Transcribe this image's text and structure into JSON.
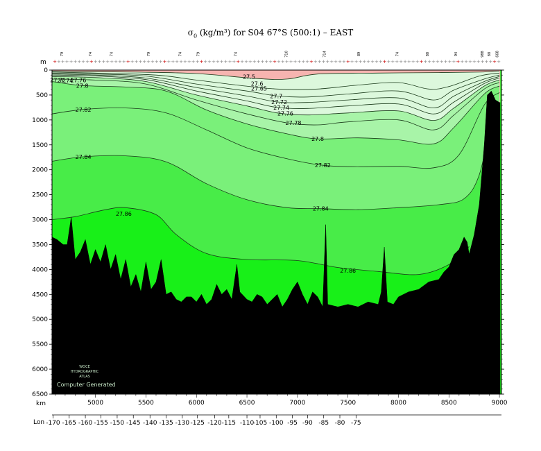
{
  "chart_data": {
    "type": "contour",
    "title_prefix": "σ",
    "title_sub": "0",
    "title_rest": " (kg/m³) for S04 67°S (500:1) – EAST",
    "ylabel": "m",
    "xlabel": "km",
    "lon_label": "Lon",
    "depth_ticks": [
      0,
      500,
      1000,
      1500,
      2000,
      2500,
      3000,
      3500,
      4000,
      4500,
      5000,
      5500,
      6000,
      6500
    ],
    "ylim": [
      6500,
      0
    ],
    "km_ticks": [
      5000,
      5500,
      6000,
      6500,
      7000,
      7500,
      8000,
      8500,
      9000
    ],
    "xlim": [
      4570,
      9020
    ],
    "lon_ticks": [
      {
        "km": 4580,
        "label": "-170"
      },
      {
        "km": 4740,
        "label": "-165"
      },
      {
        "km": 4900,
        "label": "-160"
      },
      {
        "km": 5055,
        "label": "-155"
      },
      {
        "km": 5215,
        "label": "-150"
      },
      {
        "km": 5375,
        "label": "-145"
      },
      {
        "km": 5540,
        "label": "-140"
      },
      {
        "km": 5700,
        "label": "-135"
      },
      {
        "km": 5860,
        "label": "-130"
      },
      {
        "km": 6010,
        "label": "-125"
      },
      {
        "km": 6180,
        "label": "-120"
      },
      {
        "km": 6320,
        "label": "-115"
      },
      {
        "km": 6500,
        "label": "-110"
      },
      {
        "km": 6630,
        "label": "-105"
      },
      {
        "km": 6790,
        "label": "-100"
      },
      {
        "km": 6950,
        "label": "-95"
      },
      {
        "km": 7100,
        "label": "-90"
      },
      {
        "km": 7260,
        "label": "-85"
      },
      {
        "km": 7420,
        "label": "-80"
      },
      {
        "km": 7580,
        "label": "-75"
      }
    ],
    "station_labels": [
      {
        "km": 4680,
        "label": "79"
      },
      {
        "km": 4960,
        "label": "74"
      },
      {
        "km": 5170,
        "label": "74"
      },
      {
        "km": 5540,
        "label": "79"
      },
      {
        "km": 5850,
        "label": "74"
      },
      {
        "km": 6030,
        "label": "79"
      },
      {
        "km": 6400,
        "label": "74"
      },
      {
        "km": 6900,
        "label": "710"
      },
      {
        "km": 7280,
        "label": "714"
      },
      {
        "km": 7620,
        "label": "89"
      },
      {
        "km": 8000,
        "label": "74"
      },
      {
        "km": 8300,
        "label": "88"
      },
      {
        "km": 8580,
        "label": "94"
      },
      {
        "km": 8840,
        "label": "988"
      },
      {
        "km": 8910,
        "label": "88"
      },
      {
        "km": 8990,
        "label": "668"
      }
    ],
    "contour_levels": [
      27.5,
      27.6,
      27.65,
      27.7,
      27.72,
      27.74,
      27.76,
      27.78,
      27.8,
      27.82,
      27.84,
      27.86
    ],
    "fill_colors": {
      "below_27_6": "#f6b4b0",
      "27_6_to_27_76": "#dcf8dc",
      "27_76_to_27_8": "#a8f4a8",
      "27_8_to_27_84": "#7af07a",
      "27_84_to_27_86": "#48ec48",
      "above_27_86": "#18f018",
      "bottom": "#000000"
    },
    "contour_labels": [
      {
        "text": "27.5",
        "km": 6520,
        "depth": 130
      },
      {
        "text": "27.6",
        "km": 6600,
        "depth": 270
      },
      {
        "text": "27.65",
        "km": 6620,
        "depth": 370
      },
      {
        "text": "27.7",
        "km": 6790,
        "depth": 520
      },
      {
        "text": "27.72",
        "km": 6820,
        "depth": 640
      },
      {
        "text": "27.74",
        "km": 6840,
        "depth": 750
      },
      {
        "text": "27.76",
        "km": 6880,
        "depth": 870
      },
      {
        "text": "27.78",
        "km": 6960,
        "depth": 1060
      },
      {
        "text": "27.8",
        "km": 7200,
        "depth": 1380
      },
      {
        "text": "27.82",
        "km": 7250,
        "depth": 1910
      },
      {
        "text": "27.84",
        "km": 7230,
        "depth": 2780
      },
      {
        "text": "27.86",
        "km": 7500,
        "depth": 4020
      },
      {
        "text": "27.8",
        "km": 4870,
        "depth": 310
      },
      {
        "text": "27.82",
        "km": 4880,
        "depth": 790
      },
      {
        "text": "27.84",
        "km": 4880,
        "depth": 1740
      },
      {
        "text": "27.86",
        "km": 5280,
        "depth": 2880
      },
      {
        "text": "27.76",
        "km": 4830,
        "depth": 200
      },
      {
        "text": "27.74",
        "km": 4700,
        "depth": 210
      },
      {
        "text": "27.72",
        "km": 4630,
        "depth": 200
      }
    ],
    "contours": [
      {
        "level": 27.6,
        "points": [
          [
            4570,
            20
          ],
          [
            4800,
            30
          ],
          [
            5400,
            40
          ],
          [
            6000,
            70
          ],
          [
            6600,
            170
          ],
          [
            6900,
            180
          ],
          [
            7200,
            80
          ],
          [
            7800,
            60
          ],
          [
            8400,
            50
          ],
          [
            8800,
            40
          ],
          [
            9000,
            20
          ]
        ]
      },
      {
        "level": 27.65,
        "points": [
          [
            4570,
            40
          ],
          [
            5000,
            60
          ],
          [
            5600,
            100
          ],
          [
            6000,
            200
          ],
          [
            6400,
            300
          ],
          [
            6800,
            380
          ],
          [
            7200,
            380
          ],
          [
            7600,
            300
          ],
          [
            8000,
            250
          ],
          [
            8300,
            380
          ],
          [
            8500,
            330
          ],
          [
            8800,
            120
          ],
          [
            9000,
            60
          ]
        ]
      },
      {
        "level": 27.7,
        "points": [
          [
            4570,
            60
          ],
          [
            5000,
            80
          ],
          [
            5500,
            120
          ],
          [
            6000,
            280
          ],
          [
            6500,
            420
          ],
          [
            6800,
            520
          ],
          [
            7100,
            540
          ],
          [
            7500,
            480
          ],
          [
            8000,
            420
          ],
          [
            8350,
            600
          ],
          [
            8550,
            400
          ],
          [
            8850,
            180
          ],
          [
            9000,
            100
          ]
        ]
      },
      {
        "level": 27.72,
        "points": [
          [
            4570,
            80
          ],
          [
            5000,
            100
          ],
          [
            5500,
            160
          ],
          [
            6000,
            350
          ],
          [
            6500,
            520
          ],
          [
            6800,
            640
          ],
          [
            7100,
            650
          ],
          [
            7500,
            600
          ],
          [
            8000,
            560
          ],
          [
            8350,
            760
          ],
          [
            8550,
            520
          ],
          [
            8850,
            230
          ],
          [
            9000,
            130
          ]
        ]
      },
      {
        "level": 27.74,
        "points": [
          [
            4570,
            100
          ],
          [
            5000,
            120
          ],
          [
            5500,
            190
          ],
          [
            6000,
            420
          ],
          [
            6500,
            620
          ],
          [
            6800,
            750
          ],
          [
            7100,
            770
          ],
          [
            7500,
            720
          ],
          [
            8000,
            680
          ],
          [
            8350,
            880
          ],
          [
            8550,
            640
          ],
          [
            8850,
            270
          ],
          [
            9000,
            160
          ]
        ]
      },
      {
        "level": 27.76,
        "points": [
          [
            4570,
            130
          ],
          [
            5000,
            150
          ],
          [
            5500,
            230
          ],
          [
            6000,
            500
          ],
          [
            6500,
            720
          ],
          [
            6800,
            860
          ],
          [
            7100,
            900
          ],
          [
            7500,
            860
          ],
          [
            8000,
            820
          ],
          [
            8350,
            1010
          ],
          [
            8550,
            760
          ],
          [
            8850,
            320
          ],
          [
            9000,
            200
          ]
        ]
      },
      {
        "level": 27.78,
        "points": [
          [
            4570,
            180
          ],
          [
            5000,
            200
          ],
          [
            5500,
            280
          ],
          [
            6000,
            600
          ],
          [
            6500,
            880
          ],
          [
            6900,
            1060
          ],
          [
            7200,
            1100
          ],
          [
            7500,
            1040
          ],
          [
            8000,
            1000
          ],
          [
            8350,
            1200
          ],
          [
            8550,
            900
          ],
          [
            8850,
            380
          ],
          [
            9000,
            250
          ]
        ]
      },
      {
        "level": 27.8,
        "points": [
          [
            4570,
            230
          ],
          [
            4870,
            310
          ],
          [
            5300,
            340
          ],
          [
            5700,
            420
          ],
          [
            6100,
            800
          ],
          [
            6500,
            1080
          ],
          [
            6900,
            1280
          ],
          [
            7200,
            1380
          ],
          [
            7600,
            1360
          ],
          [
            8000,
            1400
          ],
          [
            8350,
            1480
          ],
          [
            8550,
            1150
          ],
          [
            8850,
            480
          ],
          [
            9000,
            320
          ]
        ]
      },
      {
        "level": 27.82,
        "points": [
          [
            4570,
            880
          ],
          [
            4880,
            790
          ],
          [
            5300,
            760
          ],
          [
            5700,
            860
          ],
          [
            6100,
            1200
          ],
          [
            6500,
            1560
          ],
          [
            6900,
            1780
          ],
          [
            7250,
            1910
          ],
          [
            7600,
            1940
          ],
          [
            8000,
            1930
          ],
          [
            8350,
            1960
          ],
          [
            8600,
            1700
          ],
          [
            8850,
            700
          ],
          [
            9000,
            450
          ]
        ]
      },
      {
        "level": 27.84,
        "points": [
          [
            4570,
            1830
          ],
          [
            4880,
            1740
          ],
          [
            5300,
            1720
          ],
          [
            5700,
            1840
          ],
          [
            6100,
            2280
          ],
          [
            6500,
            2600
          ],
          [
            6900,
            2760
          ],
          [
            7230,
            2780
          ],
          [
            7600,
            2800
          ],
          [
            8000,
            2760
          ],
          [
            8400,
            2700
          ],
          [
            8650,
            2580
          ],
          [
            8800,
            2100
          ],
          [
            8920,
            1000
          ]
        ]
      },
      {
        "level": 27.86,
        "points": [
          [
            4570,
            3000
          ],
          [
            4800,
            2940
          ],
          [
            5100,
            2800
          ],
          [
            5300,
            2760
          ],
          [
            5600,
            2900
          ],
          [
            5800,
            3300
          ],
          [
            6100,
            3680
          ],
          [
            6500,
            3800
          ],
          [
            7000,
            3820
          ],
          [
            7400,
            3960
          ],
          [
            7800,
            4040
          ],
          [
            8200,
            4100
          ],
          [
            8500,
            3900
          ],
          [
            8700,
            3540
          ]
        ]
      }
    ],
    "bathymetry": [
      [
        4570,
        3350
      ],
      [
        4620,
        3400
      ],
      [
        4680,
        3500
      ],
      [
        4720,
        3500
      ],
      [
        4760,
        2950
      ],
      [
        4800,
        3800
      ],
      [
        4850,
        3650
      ],
      [
        4900,
        3400
      ],
      [
        4950,
        3900
      ],
      [
        5000,
        3600
      ],
      [
        5050,
        3850
      ],
      [
        5100,
        3500
      ],
      [
        5150,
        4000
      ],
      [
        5200,
        3700
      ],
      [
        5250,
        4200
      ],
      [
        5300,
        3800
      ],
      [
        5350,
        4350
      ],
      [
        5400,
        4100
      ],
      [
        5450,
        4450
      ],
      [
        5500,
        3850
      ],
      [
        5550,
        4400
      ],
      [
        5600,
        4250
      ],
      [
        5650,
        3800
      ],
      [
        5700,
        4500
      ],
      [
        5750,
        4450
      ],
      [
        5800,
        4600
      ],
      [
        5850,
        4650
      ],
      [
        5900,
        4550
      ],
      [
        5950,
        4550
      ],
      [
        6000,
        4650
      ],
      [
        6050,
        4500
      ],
      [
        6100,
        4700
      ],
      [
        6150,
        4600
      ],
      [
        6200,
        4300
      ],
      [
        6250,
        4500
      ],
      [
        6300,
        4400
      ],
      [
        6350,
        4600
      ],
      [
        6400,
        3900
      ],
      [
        6430,
        4450
      ],
      [
        6500,
        4600
      ],
      [
        6550,
        4650
      ],
      [
        6600,
        4500
      ],
      [
        6650,
        4550
      ],
      [
        6700,
        4700
      ],
      [
        6750,
        4600
      ],
      [
        6800,
        4500
      ],
      [
        6850,
        4750
      ],
      [
        6900,
        4600
      ],
      [
        6950,
        4400
      ],
      [
        7000,
        4250
      ],
      [
        7050,
        4500
      ],
      [
        7100,
        4700
      ],
      [
        7150,
        4450
      ],
      [
        7200,
        4550
      ],
      [
        7250,
        4750
      ],
      [
        7280,
        3100
      ],
      [
        7300,
        4700
      ],
      [
        7400,
        4750
      ],
      [
        7500,
        4700
      ],
      [
        7600,
        4750
      ],
      [
        7700,
        4650
      ],
      [
        7800,
        4700
      ],
      [
        7830,
        4450
      ],
      [
        7860,
        3550
      ],
      [
        7890,
        4650
      ],
      [
        7950,
        4700
      ],
      [
        8000,
        4550
      ],
      [
        8100,
        4450
      ],
      [
        8200,
        4400
      ],
      [
        8300,
        4250
      ],
      [
        8400,
        4200
      ],
      [
        8450,
        4050
      ],
      [
        8500,
        3950
      ],
      [
        8550,
        3700
      ],
      [
        8600,
        3600
      ],
      [
        8650,
        3350
      ],
      [
        8680,
        3450
      ],
      [
        8700,
        3700
      ],
      [
        8750,
        3300
      ],
      [
        8800,
        2700
      ],
      [
        8850,
        1500
      ],
      [
        8880,
        500
      ],
      [
        8920,
        420
      ],
      [
        8960,
        600
      ],
      [
        9000,
        650
      ],
      [
        9020,
        650
      ]
    ]
  },
  "watermark": {
    "line1": "WOCE",
    "line2": "HYDROGRAPHIC",
    "line3": "ATLAS",
    "line4": "Computer Generated"
  }
}
